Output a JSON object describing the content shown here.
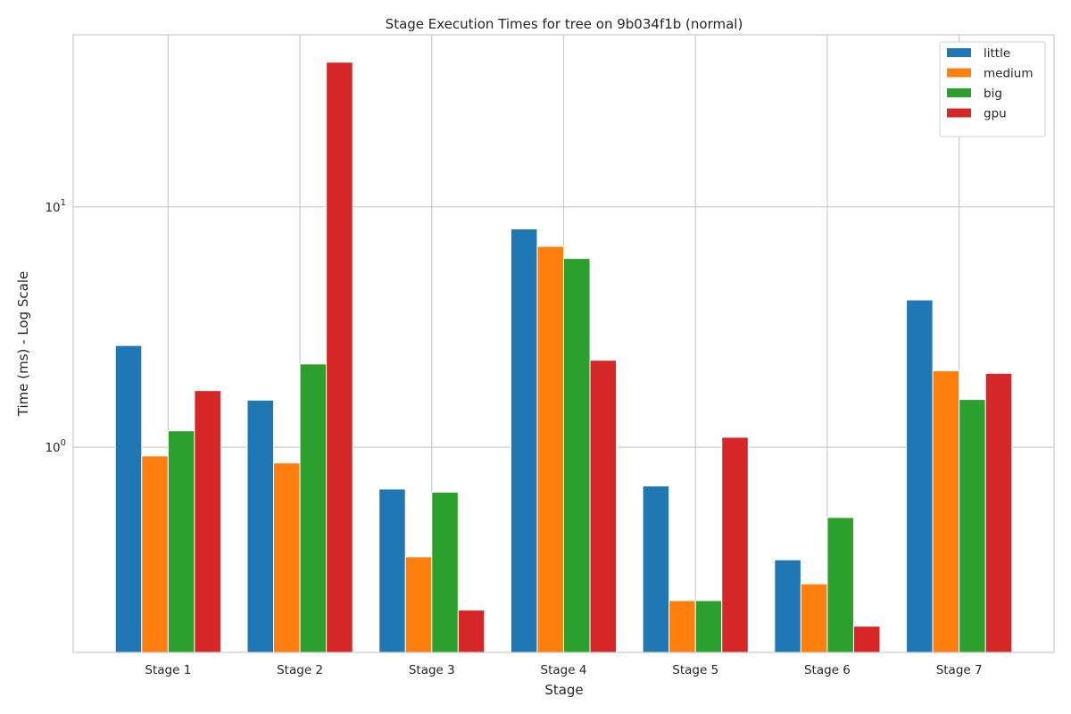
{
  "chart_data": {
    "type": "bar",
    "title": "Stage Execution Times for tree on 9b034f1b (normal)",
    "xlabel": "Stage",
    "ylabel": "Time (ms) - Log Scale",
    "yscale": "log",
    "ylim": [
      0.14,
      52
    ],
    "yticks": [
      {
        "value": 1,
        "label_base": "10",
        "label_exp": "0"
      },
      {
        "value": 10,
        "label_base": "10",
        "label_exp": "1"
      }
    ],
    "grid": true,
    "legend_position": "top-right",
    "categories": [
      "Stage 1",
      "Stage 2",
      "Stage 3",
      "Stage 4",
      "Stage 5",
      "Stage 6",
      "Stage 7"
    ],
    "series": [
      {
        "name": "little",
        "color": "#1f77b4",
        "values": [
          2.65,
          1.57,
          0.67,
          8.1,
          0.69,
          0.34,
          4.1
        ]
      },
      {
        "name": "medium",
        "color": "#ff7f0e",
        "values": [
          0.92,
          0.86,
          0.35,
          6.85,
          0.23,
          0.27,
          2.08
        ]
      },
      {
        "name": "big",
        "color": "#2ca02c",
        "values": [
          1.17,
          2.22,
          0.65,
          6.1,
          0.23,
          0.51,
          1.58
        ]
      },
      {
        "name": "gpu",
        "color": "#d62728",
        "values": [
          1.72,
          40.0,
          0.21,
          2.3,
          1.1,
          0.18,
          2.03
        ]
      }
    ]
  }
}
